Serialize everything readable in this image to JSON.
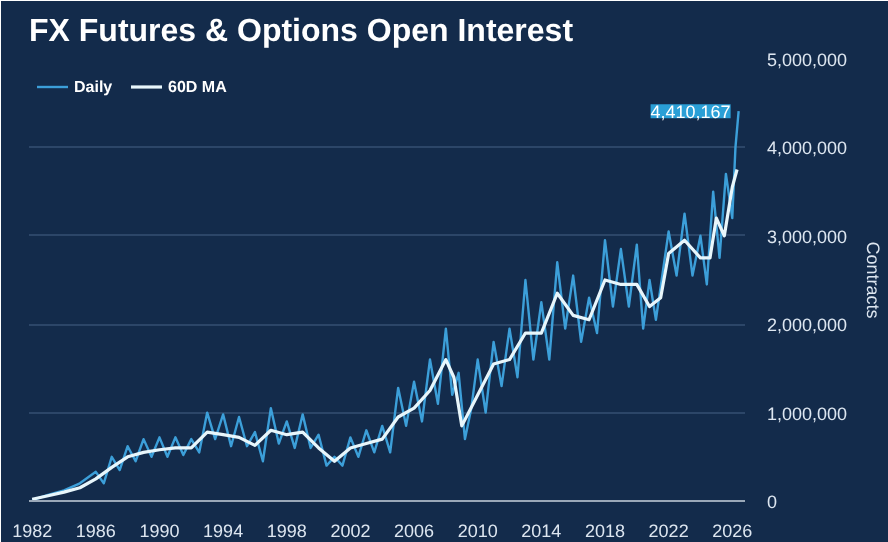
{
  "chart_data": {
    "type": "line",
    "title": "FX Futures & Options Open Interest",
    "ylabel": "Contracts",
    "xlim": [
      1981.8,
      2026.8
    ],
    "xticks": [
      1982,
      1986,
      1990,
      1994,
      1998,
      2002,
      2006,
      2010,
      2014,
      2018,
      2022,
      2026
    ],
    "ylim": [
      0,
      5000000
    ],
    "yticks": [
      {
        "value": 0,
        "label": "0"
      },
      {
        "value": 1000000,
        "label": "1,000,000"
      },
      {
        "value": 2000000,
        "label": "2,000,000"
      },
      {
        "value": 3000000,
        "label": "3,000,000"
      },
      {
        "value": 4000000,
        "label": "4,000,000"
      },
      {
        "value": 5000000,
        "label": "5,000,000"
      }
    ],
    "grid": "y",
    "legend": "top left",
    "marker": "none",
    "line_style": "solid",
    "series": [
      {
        "name": "Daily",
        "color": "#3c9fd9",
        "x": [
          1982.0,
          1983,
          1984,
          1985,
          1986,
          1986.5,
          1987,
          1987.5,
          1988,
          1988.5,
          1989,
          1989.5,
          1990,
          1990.5,
          1991,
          1991.5,
          1992,
          1992.5,
          1993,
          1993.5,
          1994,
          1994.5,
          1995,
          1995.5,
          1996,
          1996.5,
          1997,
          1997.5,
          1998,
          1998.5,
          1999,
          1999.5,
          2000,
          2000.5,
          2001,
          2001.5,
          2002,
          2002.5,
          2003,
          2003.5,
          2004,
          2004.5,
          2005,
          2005.5,
          2006,
          2006.5,
          2007,
          2007.5,
          2008,
          2008.4,
          2008.8,
          2009.2,
          2009.6,
          2010,
          2010.5,
          2011,
          2011.5,
          2012,
          2012.5,
          2013,
          2013.5,
          2014,
          2014.5,
          2015,
          2015.5,
          2016,
          2016.5,
          2017,
          2017.5,
          2018,
          2018.5,
          2019,
          2019.5,
          2020,
          2020.4,
          2020.8,
          2021.2,
          2021.6,
          2022,
          2022.5,
          2023,
          2023.5,
          2024,
          2024.4,
          2024.8,
          2025.2,
          2025.6,
          2026,
          2026.2,
          2026.4
        ],
        "values": [
          10000,
          70000,
          120000,
          200000,
          330000,
          200000,
          500000,
          350000,
          620000,
          450000,
          700000,
          500000,
          720000,
          500000,
          720000,
          520000,
          700000,
          550000,
          1000000,
          700000,
          980000,
          620000,
          950000,
          620000,
          780000,
          450000,
          1050000,
          650000,
          900000,
          600000,
          980000,
          600000,
          750000,
          400000,
          500000,
          400000,
          720000,
          500000,
          800000,
          550000,
          850000,
          550000,
          1280000,
          850000,
          1350000,
          900000,
          1600000,
          1100000,
          1950000,
          1200000,
          1450000,
          700000,
          1050000,
          1600000,
          1000000,
          1800000,
          1300000,
          1950000,
          1400000,
          2500000,
          1600000,
          2250000,
          1600000,
          2700000,
          1950000,
          2550000,
          1800000,
          2300000,
          1900000,
          2950000,
          2200000,
          2850000,
          2200000,
          2900000,
          1950000,
          2500000,
          2050000,
          2550000,
          3050000,
          2550000,
          3250000,
          2550000,
          3000000,
          2450000,
          3500000,
          2750000,
          3700000,
          3200000,
          4000000,
          4410167
        ],
        "value_labels": [
          null,
          null,
          null,
          null,
          null,
          null,
          null,
          null,
          null,
          null,
          null,
          null,
          null,
          null,
          null,
          null,
          null,
          null,
          null,
          null,
          null,
          null,
          null,
          null,
          null,
          null,
          null,
          null,
          null,
          null,
          null,
          null,
          null,
          null,
          null,
          null,
          null,
          null,
          null,
          null,
          null,
          null,
          null,
          null,
          null,
          null,
          null,
          null,
          null,
          null,
          null,
          null,
          null,
          null,
          null,
          null,
          null,
          null,
          null,
          null,
          null,
          null,
          null,
          null,
          null,
          null,
          null,
          null,
          null,
          null,
          null,
          null,
          null,
          null,
          null,
          null,
          null,
          null,
          null,
          null,
          null,
          null,
          null,
          null,
          null,
          null,
          null,
          null,
          null,
          "4,410,167"
        ]
      },
      {
        "name": "60D MA",
        "color": "#e8f6fb",
        "x": [
          1982,
          1983,
          1984,
          1985,
          1986,
          1987,
          1988,
          1989,
          1990,
          1991,
          1992,
          1993,
          1994,
          1995,
          1996,
          1997,
          1998,
          1999,
          2000,
          2001,
          2002,
          2003,
          2004,
          2005,
          2006,
          2007,
          2008,
          2008.5,
          2009,
          2010,
          2011,
          2012,
          2013,
          2014,
          2015,
          2016,
          2017,
          2018,
          2019,
          2020,
          2020.8,
          2021.5,
          2022,
          2023,
          2024,
          2024.6,
          2025,
          2025.5,
          2026,
          2026.3
        ],
        "values": [
          20000,
          60000,
          100000,
          150000,
          250000,
          380000,
          500000,
          550000,
          580000,
          600000,
          600000,
          780000,
          750000,
          720000,
          630000,
          800000,
          750000,
          780000,
          600000,
          450000,
          600000,
          650000,
          700000,
          950000,
          1050000,
          1250000,
          1600000,
          1400000,
          850000,
          1200000,
          1550000,
          1600000,
          1900000,
          1900000,
          2350000,
          2100000,
          2050000,
          2500000,
          2450000,
          2450000,
          2200000,
          2300000,
          2800000,
          2950000,
          2750000,
          2750000,
          3200000,
          3000000,
          3550000,
          3750000
        ]
      }
    ]
  }
}
